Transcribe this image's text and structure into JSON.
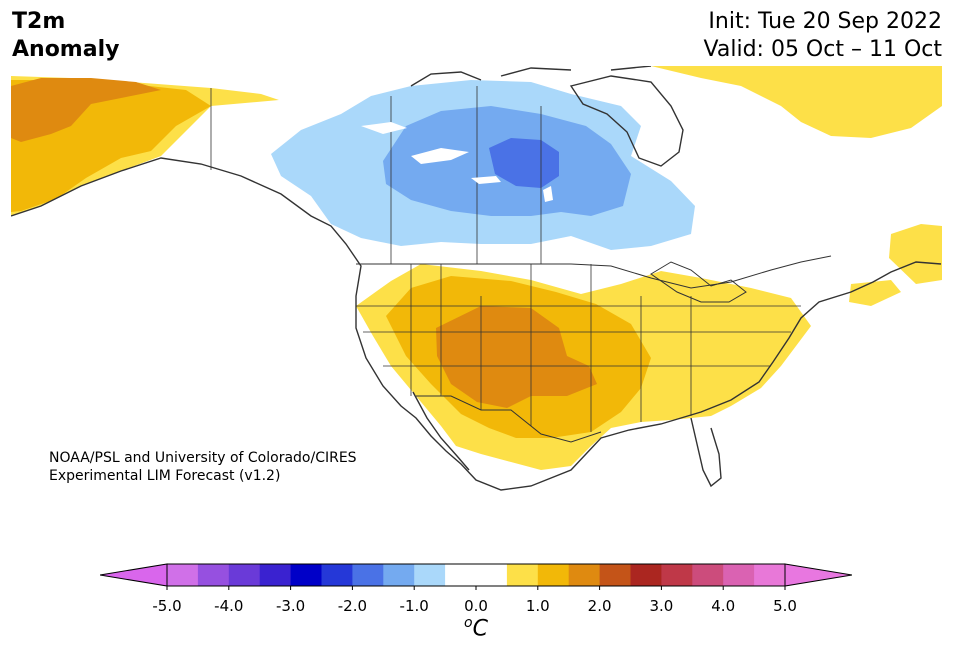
{
  "title": {
    "line1": "T2m",
    "line2": "Anomaly"
  },
  "dates": {
    "init": "Init: Tue 20 Sep 2022",
    "valid": "Valid: 05 Oct – 11 Oct"
  },
  "credit": {
    "line1": "NOAA/PSL and University of Colorado/CIRES",
    "line2": "Experimental LIM Forecast (v1.2)"
  },
  "colorbar": {
    "unit_prefix": "o",
    "unit": "C",
    "min": -5.0,
    "max": 5.0,
    "step": 0.5,
    "ticks": [
      "-5.0",
      "-4.0",
      "-3.0",
      "-2.0",
      "-1.0",
      "0.0",
      "1.0",
      "2.0",
      "3.0",
      "4.0",
      "5.0"
    ],
    "under_color": "#d966ec",
    "over_color": "#e877e0",
    "colors": [
      "#d070e8",
      "#9650e0",
      "#6a3ad8",
      "#3a22d0",
      "#0000c8",
      "#2538d8",
      "#4a72e6",
      "#74aaf0",
      "#aad8fa",
      "#ffffff",
      "#ffffff",
      "#fde048",
      "#f2b808",
      "#df8a10",
      "#c45418",
      "#ab2620",
      "#bf3848",
      "#cc4c7c",
      "#da62b2",
      "#e878d8"
    ]
  },
  "map_layers": {
    "cold": [
      {
        "level": "-1.0",
        "color": "#aad8fa"
      },
      {
        "level": "-1.5",
        "color": "#74aaf0"
      },
      {
        "level": "-2.0",
        "color": "#4a72e6"
      }
    ],
    "warm": [
      {
        "level": "0.5",
        "color": "#fde048"
      },
      {
        "level": "1.0",
        "color": "#f2b808"
      },
      {
        "level": "1.5",
        "color": "#df8a10"
      }
    ],
    "line_color": "#333333",
    "ocean_color": "#ffffff"
  }
}
